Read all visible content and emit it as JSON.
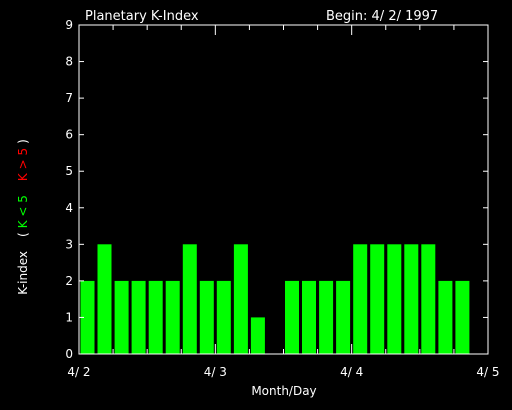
{
  "chart_data": {
    "type": "bar",
    "title": "Planetary K-Index",
    "begin_label": "Begin: 4/ 2/ 1997",
    "xlabel": "Month/Day",
    "ylabel": {
      "prefix": "K-index",
      "open": "(",
      "low": "K < 5",
      "high": "K > 5",
      "close": ")"
    },
    "x_ticks": [
      "4/ 2",
      "4/ 3",
      "4/ 4",
      "4/ 5"
    ],
    "y_ticks": [
      "0",
      "1",
      "2",
      "3",
      "4",
      "5",
      "6",
      "7",
      "8",
      "9"
    ],
    "ylim": [
      0,
      9
    ],
    "bars_per_day": 8,
    "days": 3,
    "values": [
      2,
      3,
      2,
      2,
      2,
      2,
      3,
      2,
      2,
      3,
      1,
      0,
      2,
      2,
      2,
      2,
      3,
      3,
      3,
      3,
      3,
      2,
      2,
      0
    ],
    "colors": {
      "below_5": "#00ff00",
      "above_5": "#ff0000",
      "axes": "#ffffff",
      "background": "#000000"
    }
  }
}
